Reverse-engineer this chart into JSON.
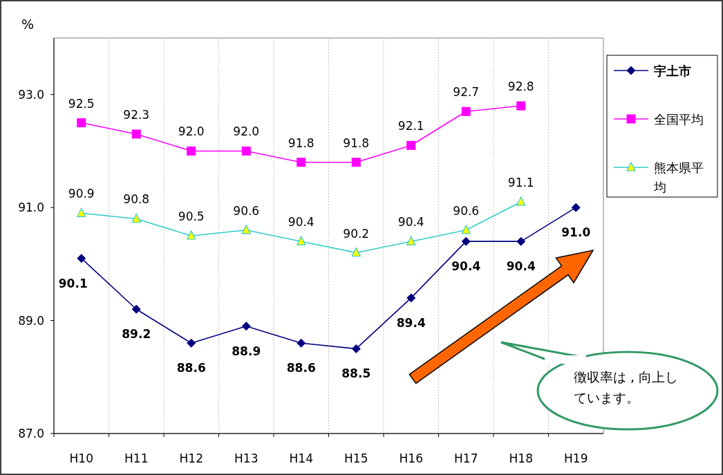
{
  "chart_data": {
    "type": "line",
    "ylabel": "%",
    "categories": [
      "H10",
      "H11",
      "H12",
      "H13",
      "H14",
      "H15",
      "H16",
      "H17",
      "H18",
      "H19"
    ],
    "ylim": [
      87,
      94
    ],
    "yticks": [
      {
        "value": 87,
        "label": "87.0"
      },
      {
        "value": 89,
        "label": "89.0"
      },
      {
        "value": 91,
        "label": "91.0"
      },
      {
        "value": 93,
        "label": "93.0"
      }
    ],
    "grid": "x",
    "legend": "right",
    "series": [
      {
        "name": "宇土市",
        "color": "#000080",
        "marker": "diamond",
        "values": [
          90.1,
          89.2,
          88.6,
          88.9,
          88.6,
          88.5,
          89.4,
          90.4,
          90.4,
          91.0
        ],
        "value_labels": [
          "90.1",
          "89.2",
          "88.6",
          "88.9",
          "88.6",
          "88.5",
          "89.4",
          "90.4",
          "90.4",
          "91.0"
        ]
      },
      {
        "name": "全国平均",
        "color": "#ff00ff",
        "marker": "square",
        "values": [
          92.5,
          92.3,
          92.0,
          92.0,
          91.8,
          91.8,
          92.1,
          92.7,
          92.8,
          null
        ],
        "value_labels": [
          "92.5",
          "92.3",
          "92.0",
          "92.0",
          "91.8",
          "91.8",
          "92.1",
          "92.7",
          "92.8",
          null
        ]
      },
      {
        "name": "熊本県平均",
        "color": "#33cccc",
        "marker": "triangle",
        "values": [
          90.9,
          90.8,
          90.5,
          90.6,
          90.4,
          90.2,
          90.4,
          90.6,
          91.1,
          null
        ],
        "value_labels": [
          "90.9",
          "90.8",
          "90.5",
          "90.6",
          "90.4",
          "90.2",
          "90.4",
          "90.6",
          "91.1",
          null
        ]
      }
    ],
    "annotations": [
      "徴収率は , 向上しています。"
    ]
  }
}
